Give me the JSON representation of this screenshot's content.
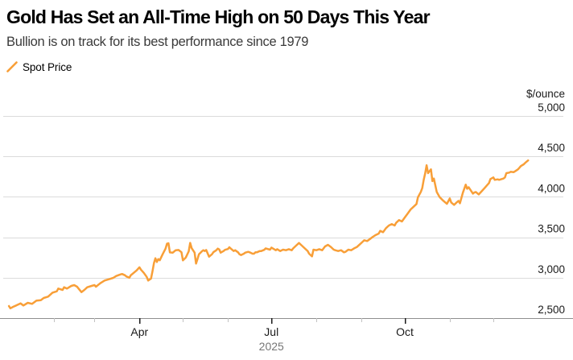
{
  "header": {
    "title": "Gold Has Set an All-Time High on 50 Days This Year",
    "subtitle": "Bullion is on track for its best performance since 1979"
  },
  "legend": {
    "label": "Spot Price"
  },
  "colors": {
    "line": "#F89F38",
    "title_text": "#000000",
    "subtitle_text": "#3A3A3A",
    "grid": "#DBDBDB",
    "axis_line": "#8F8F8F",
    "tick_major": "#1A1A1A",
    "tick_minor": "#C2C2C2",
    "label_primary": "#1A1A1A",
    "label_year": "#767676",
    "background": "#FFFFFF"
  },
  "chart_data": {
    "type": "line",
    "title": "Gold Has Set an All-Time High on 50 Days This Year",
    "subtitle": "Bullion is on track for its best performance since 1979",
    "grid": true,
    "legend_position": "top-left",
    "x_axis": {
      "unit": "day_of_year_2025",
      "range_days": [
        0,
        365
      ],
      "major_ticks": [
        {
          "label": "Apr",
          "day": 90
        },
        {
          "label": "Jul",
          "day": 181
        },
        {
          "label": "Oct",
          "day": 273
        }
      ],
      "minor_tick_days": [
        31,
        59,
        120,
        151,
        212,
        243,
        304,
        334
      ],
      "year_label": "2025"
    },
    "y_axis": {
      "unit_label": "$/ounce",
      "ylim": [
        2500,
        5000
      ],
      "ticks": [
        {
          "label": "5,000",
          "value": 5000
        },
        {
          "label": "4,500",
          "value": 4500
        },
        {
          "label": "4,000",
          "value": 4000
        },
        {
          "label": "3,500",
          "value": 3500
        },
        {
          "label": "3,000",
          "value": 3000
        },
        {
          "label": "2,500",
          "value": 2500
        }
      ]
    },
    "series": [
      {
        "name": "Spot Price",
        "color": "#F89F38",
        "points": [
          [
            0,
            2649
          ],
          [
            1,
            2622
          ],
          [
            3,
            2640
          ],
          [
            5,
            2656
          ],
          [
            8,
            2682
          ],
          [
            10,
            2656
          ],
          [
            13,
            2689
          ],
          [
            16,
            2676
          ],
          [
            19,
            2716
          ],
          [
            22,
            2722
          ],
          [
            24,
            2749
          ],
          [
            27,
            2766
          ],
          [
            30,
            2815
          ],
          [
            33,
            2832
          ],
          [
            34,
            2866
          ],
          [
            37,
            2849
          ],
          [
            38,
            2881
          ],
          [
            40,
            2866
          ],
          [
            43,
            2898
          ],
          [
            45,
            2908
          ],
          [
            47,
            2888
          ],
          [
            48,
            2866
          ],
          [
            50,
            2822
          ],
          [
            52,
            2849
          ],
          [
            54,
            2881
          ],
          [
            57,
            2898
          ],
          [
            59,
            2908
          ],
          [
            60,
            2888
          ],
          [
            63,
            2931
          ],
          [
            66,
            2965
          ],
          [
            69,
            2981
          ],
          [
            72,
            2998
          ],
          [
            74,
            3021
          ],
          [
            77,
            3041
          ],
          [
            78,
            3046
          ],
          [
            80,
            3030
          ],
          [
            81,
            3015
          ],
          [
            83,
            3000
          ],
          [
            84,
            3030
          ],
          [
            86,
            3060
          ],
          [
            88,
            3090
          ],
          [
            90,
            3128
          ],
          [
            91,
            3100
          ],
          [
            93,
            3060
          ],
          [
            95,
            3010
          ],
          [
            96,
            2965
          ],
          [
            98,
            2990
          ],
          [
            99,
            3080
          ],
          [
            100,
            3180
          ],
          [
            101,
            3240
          ],
          [
            102,
            3194
          ],
          [
            103,
            3230
          ],
          [
            104,
            3215
          ],
          [
            106,
            3290
          ],
          [
            108,
            3360
          ],
          [
            109,
            3420
          ],
          [
            110,
            3426
          ],
          [
            111,
            3313
          ],
          [
            113,
            3310
          ],
          [
            115,
            3340
          ],
          [
            117,
            3343
          ],
          [
            119,
            3315
          ],
          [
            120,
            3214
          ],
          [
            122,
            3250
          ],
          [
            124,
            3326
          ],
          [
            125,
            3430
          ],
          [
            126,
            3365
          ],
          [
            128,
            3310
          ],
          [
            129,
            3175
          ],
          [
            130,
            3230
          ],
          [
            131,
            3290
          ],
          [
            133,
            3326
          ],
          [
            134,
            3340
          ],
          [
            135,
            3330
          ],
          [
            136,
            3343
          ],
          [
            138,
            3260
          ],
          [
            140,
            3290
          ],
          [
            141,
            3316
          ],
          [
            143,
            3340
          ],
          [
            144,
            3360
          ],
          [
            145,
            3350
          ],
          [
            146,
            3310
          ],
          [
            148,
            3330
          ],
          [
            149,
            3345
          ],
          [
            151,
            3355
          ],
          [
            152,
            3376
          ],
          [
            153,
            3360
          ],
          [
            155,
            3330
          ],
          [
            156,
            3340
          ],
          [
            158,
            3314
          ],
          [
            159,
            3290
          ],
          [
            160,
            3280
          ],
          [
            162,
            3297
          ],
          [
            163,
            3310
          ],
          [
            165,
            3320
          ],
          [
            166,
            3314
          ],
          [
            168,
            3297
          ],
          [
            169,
            3297
          ],
          [
            170,
            3314
          ],
          [
            171,
            3314
          ],
          [
            173,
            3330
          ],
          [
            174,
            3330
          ],
          [
            176,
            3345
          ],
          [
            177,
            3363
          ],
          [
            180,
            3347
          ],
          [
            181,
            3373
          ],
          [
            184,
            3340
          ],
          [
            185,
            3353
          ],
          [
            187,
            3330
          ],
          [
            189,
            3347
          ],
          [
            191,
            3340
          ],
          [
            193,
            3353
          ],
          [
            195,
            3340
          ],
          [
            196,
            3363
          ],
          [
            198,
            3396
          ],
          [
            200,
            3429
          ],
          [
            202,
            3396
          ],
          [
            204,
            3363
          ],
          [
            206,
            3330
          ],
          [
            207,
            3297
          ],
          [
            209,
            3264
          ],
          [
            210,
            3347
          ],
          [
            212,
            3340
          ],
          [
            214,
            3353
          ],
          [
            216,
            3340
          ],
          [
            218,
            3386
          ],
          [
            220,
            3406
          ],
          [
            222,
            3380
          ],
          [
            224,
            3347
          ],
          [
            225,
            3340
          ],
          [
            227,
            3330
          ],
          [
            229,
            3340
          ],
          [
            231,
            3314
          ],
          [
            232,
            3320
          ],
          [
            234,
            3347
          ],
          [
            236,
            3340
          ],
          [
            238,
            3363
          ],
          [
            240,
            3380
          ],
          [
            242,
            3413
          ],
          [
            244,
            3446
          ],
          [
            245,
            3463
          ],
          [
            247,
            3453
          ],
          [
            249,
            3479
          ],
          [
            251,
            3506
          ],
          [
            253,
            3529
          ],
          [
            255,
            3546
          ],
          [
            256,
            3579
          ],
          [
            258,
            3563
          ],
          [
            260,
            3613
          ],
          [
            262,
            3645
          ],
          [
            264,
            3662
          ],
          [
            266,
            3645
          ],
          [
            267,
            3678
          ],
          [
            269,
            3712
          ],
          [
            271,
            3695
          ],
          [
            273,
            3745
          ],
          [
            275,
            3795
          ],
          [
            277,
            3845
          ],
          [
            279,
            3877
          ],
          [
            281,
            3911
          ],
          [
            282,
            3994
          ],
          [
            284,
            4061
          ],
          [
            285,
            4110
          ],
          [
            286,
            4210
          ],
          [
            287,
            4290
          ],
          [
            288,
            4390
          ],
          [
            289,
            4293
          ],
          [
            291,
            4340
          ],
          [
            292,
            4194
          ],
          [
            293,
            4226
          ],
          [
            295,
            4060
          ],
          [
            297,
            3997
          ],
          [
            299,
            3960
          ],
          [
            302,
            3913
          ],
          [
            304,
            3980
          ],
          [
            305,
            3930
          ],
          [
            307,
            3900
          ],
          [
            309,
            3935
          ],
          [
            310,
            3950
          ],
          [
            311,
            3920
          ],
          [
            313,
            4050
          ],
          [
            315,
            4150
          ],
          [
            316,
            4100
          ],
          [
            317,
            4120
          ],
          [
            320,
            4040
          ],
          [
            321,
            4055
          ],
          [
            322,
            4060
          ],
          [
            324,
            4030
          ],
          [
            326,
            4070
          ],
          [
            328,
            4110
          ],
          [
            330,
            4150
          ],
          [
            331,
            4170
          ],
          [
            332,
            4220
          ],
          [
            334,
            4240
          ],
          [
            335,
            4210
          ],
          [
            337,
            4216
          ],
          [
            338,
            4210
          ],
          [
            341,
            4226
          ],
          [
            342,
            4240
          ],
          [
            343,
            4293
          ],
          [
            345,
            4300
          ],
          [
            346,
            4310
          ],
          [
            348,
            4305
          ],
          [
            349,
            4316
          ],
          [
            351,
            4340
          ],
          [
            352,
            4360
          ],
          [
            353,
            4380
          ],
          [
            355,
            4402
          ],
          [
            356,
            4420
          ],
          [
            358,
            4450
          ]
        ]
      }
    ]
  }
}
